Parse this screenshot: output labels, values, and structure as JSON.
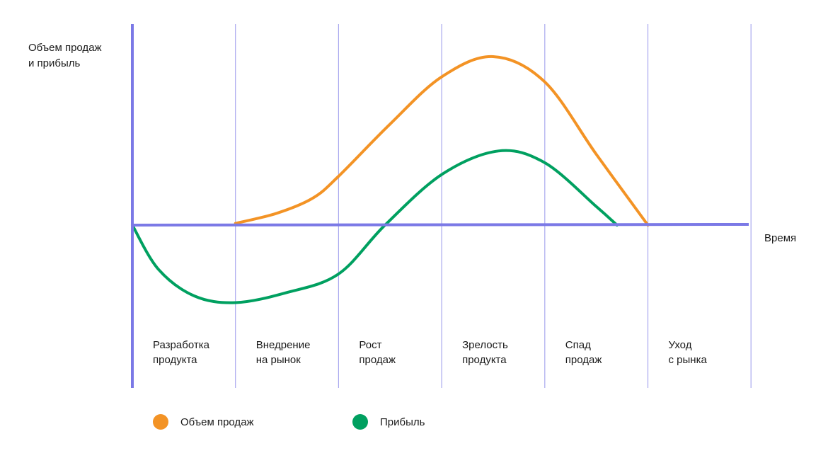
{
  "chart_data": {
    "type": "line",
    "title": "",
    "ylabel": [
      "Объем продаж",
      "и прибыль"
    ],
    "xlabel": "Время",
    "stages": [
      [
        "Разработка",
        "продукта"
      ],
      [
        "Внедрение",
        "на рынок"
      ],
      [
        "Рост",
        "продаж"
      ],
      [
        "Зрелость",
        "продукта"
      ],
      [
        "Спад",
        "продаж"
      ],
      [
        "Уход",
        "с рынка"
      ]
    ],
    "xlim": [
      0,
      6
    ],
    "ylim": [
      -1,
      1
    ],
    "grid": "vertical stage dividers",
    "legend_position": "bottom-left",
    "series": [
      {
        "name": "Объем продаж",
        "color": "#f39325",
        "points": [
          [
            1.0,
            0.01
          ],
          [
            1.4,
            0.07
          ],
          [
            1.75,
            0.16
          ],
          [
            2.0,
            0.29
          ],
          [
            2.5,
            0.6
          ],
          [
            3.0,
            0.88
          ],
          [
            3.5,
            1.0
          ],
          [
            4.0,
            0.85
          ],
          [
            4.5,
            0.42
          ],
          [
            5.0,
            0.0
          ]
        ]
      },
      {
        "name": "Прибыль",
        "color": "#00a060",
        "points": [
          [
            0.0,
            0.0
          ],
          [
            0.25,
            -0.26
          ],
          [
            0.6,
            -0.42
          ],
          [
            1.0,
            -0.46
          ],
          [
            1.5,
            -0.4
          ],
          [
            2.0,
            -0.29
          ],
          [
            2.45,
            0.0
          ],
          [
            3.0,
            0.3
          ],
          [
            3.55,
            0.44
          ],
          [
            4.0,
            0.37
          ],
          [
            4.5,
            0.11
          ],
          [
            4.7,
            0.0
          ]
        ]
      }
    ],
    "axis_color": "#7b79e6",
    "grid_color": "#a9a8ee"
  }
}
